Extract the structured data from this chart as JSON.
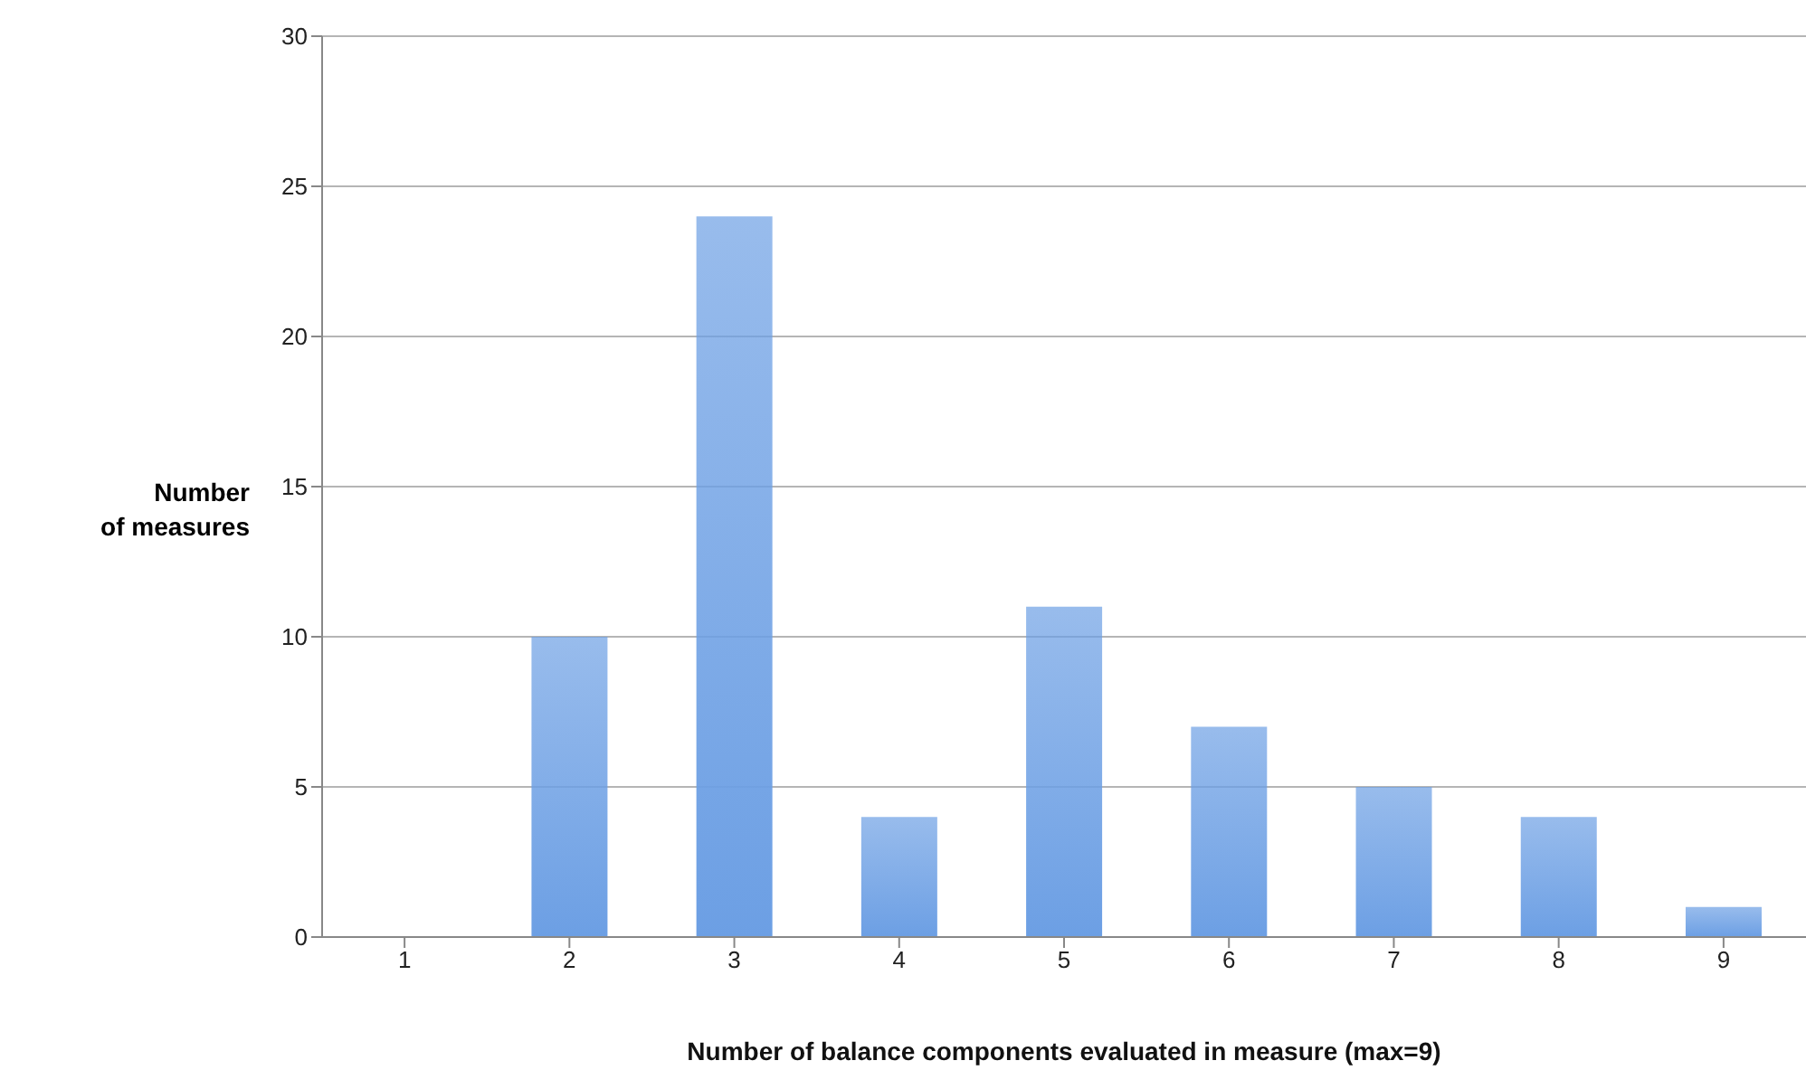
{
  "chart_data": {
    "type": "bar",
    "xlabel": "Number of balance components evaluated in measure (max=9)",
    "ylabel": "Number\nof measures",
    "categories": [
      "1",
      "2",
      "3",
      "4",
      "5",
      "6",
      "7",
      "8",
      "9"
    ],
    "values": [
      0,
      10,
      24,
      4,
      11,
      7,
      5,
      4,
      1
    ],
    "color": "#6c9fe4",
    "ylim": [
      0,
      30
    ],
    "yticks": [
      0,
      5,
      10,
      15,
      20,
      25,
      30
    ],
    "grid": "y"
  }
}
